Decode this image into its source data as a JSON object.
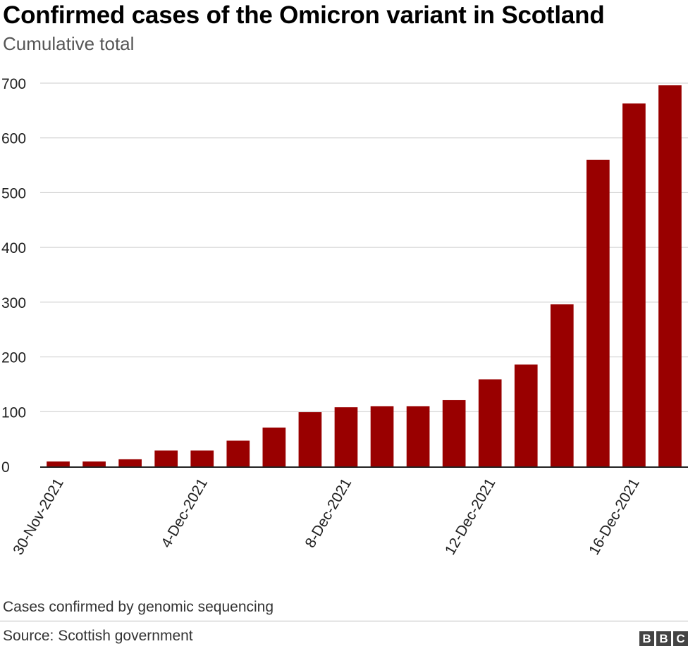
{
  "header": {
    "title": "Confirmed cases of the Omicron variant in Scotland",
    "subtitle": "Cumulative total"
  },
  "footer": {
    "note": "Cases confirmed by genomic sequencing",
    "source": "Source: Scottish government",
    "logo_letters": [
      "B",
      "B",
      "C"
    ]
  },
  "chart_data": {
    "type": "bar",
    "title": "Confirmed cases of the Omicron variant in Scotland",
    "subtitle": "Cumulative total",
    "categories": [
      "30-Nov-2021",
      "1-Dec-2021",
      "2-Dec-2021",
      "3-Dec-2021",
      "4-Dec-2021",
      "5-Dec-2021",
      "6-Dec-2021",
      "7-Dec-2021",
      "8-Dec-2021",
      "9-Dec-2021",
      "10-Dec-2021",
      "11-Dec-2021",
      "12-Dec-2021",
      "13-Dec-2021",
      "14-Dec-2021",
      "15-Dec-2021",
      "16-Dec-2021",
      "17-Dec-2021"
    ],
    "values": [
      9,
      9,
      13,
      29,
      29,
      47,
      71,
      99,
      108,
      110,
      110,
      121,
      159,
      186,
      296,
      560,
      663,
      696
    ],
    "tick_labels": [
      "30-Nov-2021",
      "4-Dec-2021",
      "8-Dec-2021",
      "12-Dec-2021",
      "16-Dec-2021"
    ],
    "tick_indices": [
      0,
      4,
      8,
      12,
      16
    ],
    "y_ticks": [
      0,
      100,
      200,
      300,
      400,
      500,
      600,
      700
    ],
    "ylim": [
      0,
      700
    ],
    "grid": true,
    "bar_color": "#990000",
    "xlabel": "",
    "ylabel": ""
  }
}
